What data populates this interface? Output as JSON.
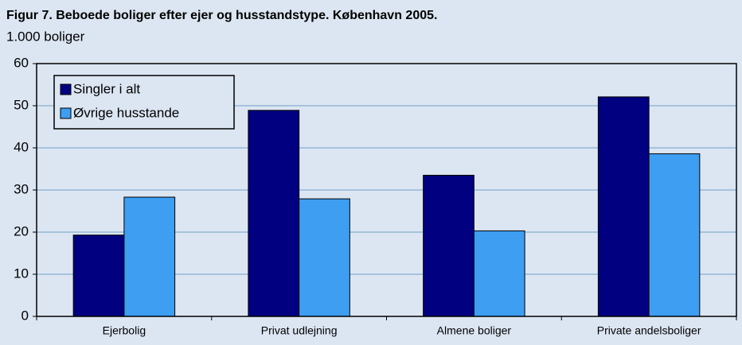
{
  "chart_data": {
    "type": "bar",
    "title": "Figur 7. Beboede boliger efter ejer og husstandstype. København 2005.",
    "y_label": "1.000 boliger",
    "categories": [
      "Ejerbolig",
      "Privat udlejning",
      "Almene boliger",
      "Private andelsboliger"
    ],
    "series": [
      {
        "name": "Singler i alt",
        "color": "#000080",
        "values": [
          19.3,
          48.9,
          33.5,
          52.1
        ]
      },
      {
        "name": "Øvrige husstande",
        "color": "#3d9ef2",
        "values": [
          28.3,
          27.9,
          20.3,
          38.6
        ]
      }
    ],
    "ylim": [
      0,
      60
    ],
    "yticks": [
      0,
      10,
      20,
      30,
      40,
      50,
      60
    ],
    "grid": true,
    "legend": "upper-left"
  }
}
